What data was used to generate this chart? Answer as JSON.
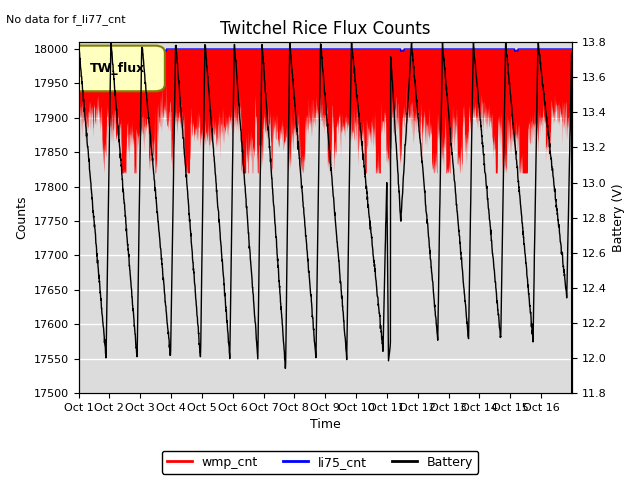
{
  "title": "Twitchel Rice Flux Counts",
  "no_data_text": "No data for f_li77_cnt",
  "xlabel": "Time",
  "ylabel_left": "Counts",
  "ylabel_right": "Battery (V)",
  "ylim_left": [
    17500,
    18010
  ],
  "ylim_right": [
    11.8,
    13.8
  ],
  "yticks_left": [
    17500,
    17550,
    17600,
    17650,
    17700,
    17750,
    17800,
    17850,
    17900,
    17950,
    18000
  ],
  "yticks_right": [
    11.8,
    12.0,
    12.2,
    12.4,
    12.6,
    12.8,
    13.0,
    13.2,
    13.4,
    13.6,
    13.8
  ],
  "xtick_labels": [
    "Oct 1",
    "Oct 2",
    "Oct 3",
    "Oct 4",
    "Oct 5",
    "Oct 6",
    "Oct 7",
    "Oct 8",
    "Oct 9",
    "Oct 10",
    "Oct 11",
    "Oct 12",
    "Oct 13",
    "Oct 14",
    "Oct 15",
    "Oct 16"
  ],
  "n_days": 16,
  "wmp_color": "#ff0000",
  "li75_color": "#0000ff",
  "battery_color": "#000000",
  "background_color": "#dcdcdc",
  "legend_box_color": "#ffffc0",
  "legend_box_text": "TW_flux",
  "grid_color": "#ffffff",
  "title_fontsize": 12,
  "label_fontsize": 9,
  "tick_fontsize": 8
}
